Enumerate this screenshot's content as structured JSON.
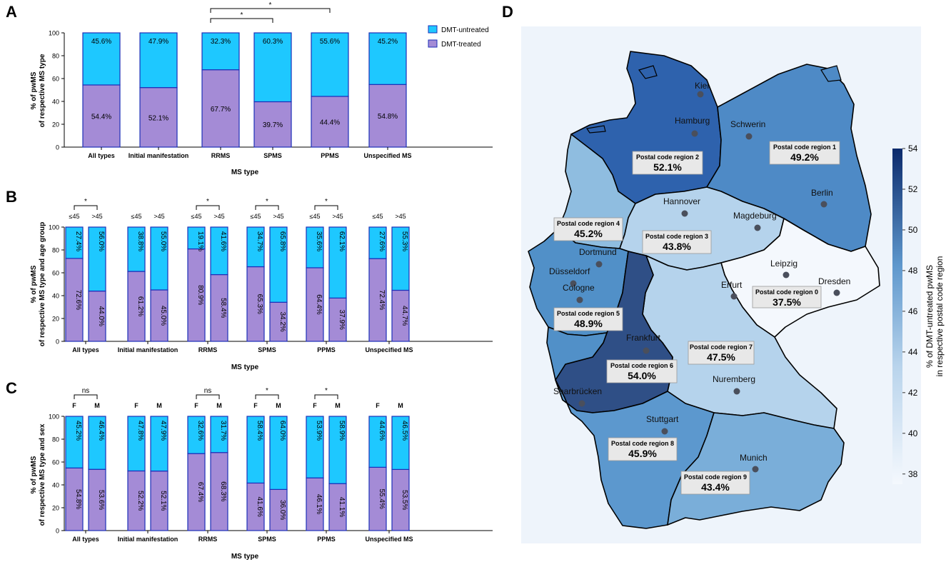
{
  "colors": {
    "treated": "#a48bd6",
    "untreated": "#1ec8ff",
    "bar_border": "#1d2fb8",
    "map_bg": "#eef4fb",
    "colorbar_high": "#0b2a6b",
    "colorbar_low": "#f4f8fd"
  },
  "chart_data": [
    {
      "panel": "A",
      "type": "bar",
      "stacked": true,
      "categories": [
        "All types",
        "Initial manifestation",
        "RRMS",
        "SPMS",
        "PPMS",
        "Unspecified MS"
      ],
      "series": [
        {
          "name": "DMT-treated",
          "values": [
            54.4,
            52.1,
            67.7,
            39.7,
            44.4,
            54.8
          ],
          "labels": [
            "54.4%",
            "52.1%",
            "67.7%",
            "39.7%",
            "44.4%",
            "54.8%"
          ]
        },
        {
          "name": "DMT-untreated",
          "values": [
            45.6,
            47.9,
            32.3,
            60.3,
            55.6,
            45.2
          ],
          "labels": [
            "45.6%",
            "47.9%",
            "32.3%",
            "60.3%",
            "55.6%",
            "45.2%"
          ]
        }
      ],
      "xlabel": "MS type",
      "ylabel": [
        "% of pwMS",
        "of respective MS type"
      ],
      "ylim": [
        0,
        100
      ],
      "yticks": [
        "0",
        "20",
        "40",
        "60",
        "80",
        "100"
      ],
      "legend": [
        "DMT-untreated",
        "DMT-treated"
      ],
      "significance": [
        {
          "from": "RRMS",
          "to": "SPMS",
          "label": "*"
        },
        {
          "from": "RRMS",
          "to": "PPMS",
          "label": "*"
        }
      ]
    },
    {
      "panel": "B",
      "type": "bar",
      "stacked": true,
      "categories": [
        "All types",
        "Initial manifestation",
        "RRMS",
        "SPMS",
        "PPMS",
        "Unspecified MS"
      ],
      "subgroups": [
        "≤45",
        ">45"
      ],
      "treated": [
        [
          72.6,
          44.0
        ],
        [
          61.2,
          45.0
        ],
        [
          80.9,
          58.4
        ],
        [
          65.3,
          34.2
        ],
        [
          64.4,
          37.9
        ],
        [
          72.4,
          44.7
        ]
      ],
      "untreated": [
        [
          27.4,
          56.0
        ],
        [
          38.8,
          55.0
        ],
        [
          19.1,
          41.6
        ],
        [
          34.7,
          65.8
        ],
        [
          35.6,
          62.1
        ],
        [
          27.6,
          55.3
        ]
      ],
      "treated_labels": [
        [
          "72.6%",
          "44.0%"
        ],
        [
          "61.2%",
          "45.0%"
        ],
        [
          "80.9%",
          "58.4%"
        ],
        [
          "65.3%",
          "34.2%"
        ],
        [
          "64.4%",
          "37.9%"
        ],
        [
          "72.4%",
          "44.7%"
        ]
      ],
      "untreated_labels": [
        [
          "27.4%",
          "56.0%"
        ],
        [
          "38.8%",
          "55.0%"
        ],
        [
          "19.1%",
          "41.6%"
        ],
        [
          "34.7%",
          "65.8%"
        ],
        [
          "35.6%",
          "62.1%"
        ],
        [
          "27.6%",
          "55.3%"
        ]
      ],
      "significance": [
        "*",
        "",
        "*",
        "*",
        "*",
        ""
      ],
      "xlabel": "MS type",
      "ylabel": [
        "% of pwMS",
        "of respective MS type and age group"
      ],
      "ylim": [
        0,
        100
      ],
      "yticks": [
        "0",
        "20",
        "40",
        "60",
        "80",
        "100"
      ]
    },
    {
      "panel": "C",
      "type": "bar",
      "stacked": true,
      "categories": [
        "All types",
        "Initial manifestation",
        "RRMS",
        "SPMS",
        "PPMS",
        "Unspecified MS"
      ],
      "subgroups": [
        "F",
        "M"
      ],
      "treated": [
        [
          54.8,
          53.6
        ],
        [
          52.2,
          52.1
        ],
        [
          67.4,
          68.3
        ],
        [
          41.6,
          36.0
        ],
        [
          46.1,
          41.1
        ],
        [
          55.4,
          53.5
        ]
      ],
      "untreated": [
        [
          45.2,
          46.4
        ],
        [
          47.8,
          47.9
        ],
        [
          32.6,
          31.7
        ],
        [
          58.4,
          64.0
        ],
        [
          53.9,
          58.9
        ],
        [
          44.6,
          46.5
        ]
      ],
      "treated_labels": [
        [
          "54.8%",
          "53.6%"
        ],
        [
          "52.2%",
          "52.1%"
        ],
        [
          "67.4%",
          "68.3%"
        ],
        [
          "41.6%",
          "36.0%"
        ],
        [
          "46.1%",
          "41.1%"
        ],
        [
          "55.4%",
          "53.5%"
        ]
      ],
      "untreated_labels": [
        [
          "45.2%",
          "46.4%"
        ],
        [
          "47.8%",
          "47.9%"
        ],
        [
          "32.6%",
          "31.7%"
        ],
        [
          "58.4%",
          "64.0%"
        ],
        [
          "53.9%",
          "58.9%"
        ],
        [
          "44.6%",
          "46.5%"
        ]
      ],
      "significance": [
        "ns",
        "",
        "ns",
        "*",
        "*",
        ""
      ],
      "xlabel": "MS type",
      "ylabel": [
        "% of pwMS",
        "of respective MS type and sex"
      ],
      "ylim": [
        0,
        100
      ],
      "yticks": [
        "0",
        "20",
        "40",
        "60",
        "80",
        "100"
      ]
    },
    {
      "panel": "D",
      "type": "heatmap",
      "subtype": "choropleth",
      "regions": [
        {
          "name": "Postal code region 0",
          "value": 37.5,
          "label": "37.5%"
        },
        {
          "name": "Postal code region 1",
          "value": 49.2,
          "label": "49.2%"
        },
        {
          "name": "Postal code region 2",
          "value": 52.1,
          "label": "52.1%"
        },
        {
          "name": "Postal code region 3",
          "value": 43.8,
          "label": "43.8%"
        },
        {
          "name": "Postal code region 4",
          "value": 45.2,
          "label": "45.2%"
        },
        {
          "name": "Postal code region 5",
          "value": 48.9,
          "label": "48.9%"
        },
        {
          "name": "Postal code region 6",
          "value": 54.0,
          "label": "54.0%"
        },
        {
          "name": "Postal code region 7",
          "value": 47.5,
          "label": "47.5%"
        },
        {
          "name": "Postal code region 8",
          "value": 45.9,
          "label": "45.9%"
        },
        {
          "name": "Postal code region 9",
          "value": 43.4,
          "label": "43.4%"
        }
      ],
      "cities": [
        "Kiel",
        "Hamburg",
        "Schwerin",
        "Berlin",
        "Hannover",
        "Magdeburg",
        "Dortmund",
        "Düsseldorf",
        "Cologne",
        "Leipzig",
        "Dresden",
        "Erfurt",
        "Frankfurt",
        "Nuremberg",
        "Saarbrücken",
        "Stuttgart",
        "Munich"
      ],
      "colorbar": {
        "range": [
          37.5,
          54
        ],
        "ticks": [
          "38",
          "40",
          "42",
          "44",
          "46",
          "48",
          "50",
          "52",
          "54"
        ],
        "label": [
          "% of DMT-untreated pwMS",
          "in respective postal code region"
        ]
      }
    }
  ],
  "panel_labels": [
    "A",
    "B",
    "C",
    "D"
  ]
}
